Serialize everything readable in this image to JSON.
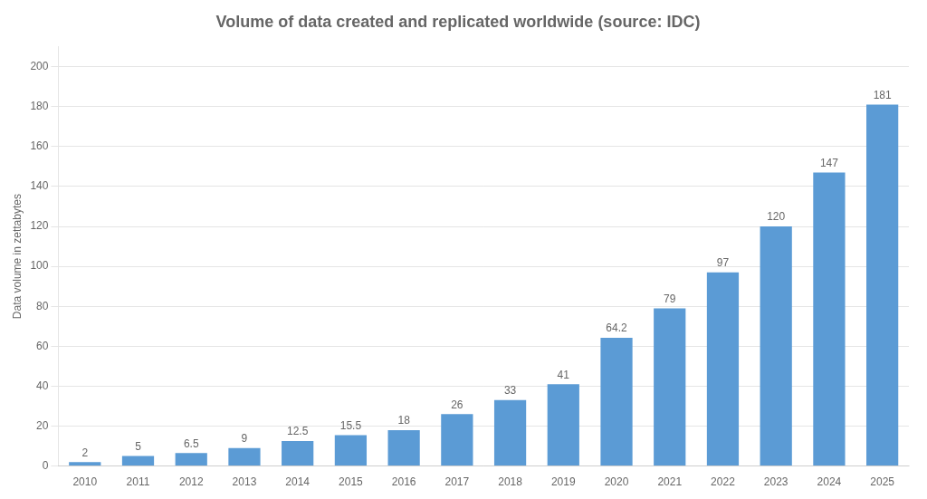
{
  "chart_data": {
    "type": "bar",
    "title": "Volume of data created and replicated worldwide (source: IDC)",
    "y_label": "Data volume in zettabytes",
    "categories": [
      "2010",
      "2011",
      "2012",
      "2013",
      "2014",
      "2015",
      "2016",
      "2017",
      "2018",
      "2019",
      "2020",
      "2021",
      "2022",
      "2023",
      "2024",
      "2025"
    ],
    "values": [
      2,
      5,
      6.5,
      9,
      12.5,
      15.5,
      18,
      26,
      33,
      41,
      64.2,
      79,
      97,
      120,
      147,
      181
    ],
    "color": "#5b9bd5",
    "ylim": [
      0,
      210
    ],
    "yticks": [
      0,
      20,
      40,
      60,
      80,
      100,
      120,
      140,
      160,
      180,
      200
    ],
    "grid": true,
    "data_labels": true
  }
}
